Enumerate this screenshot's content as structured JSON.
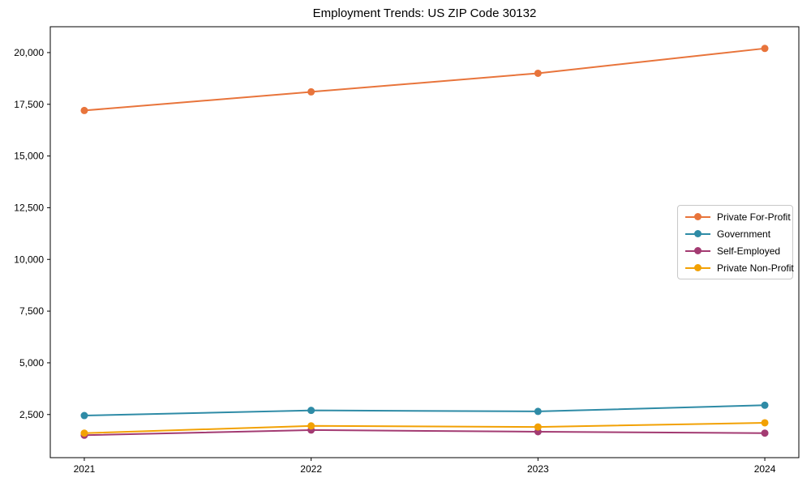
{
  "chart_data": {
    "type": "line",
    "title": "Employment Trends: US ZIP Code 30132",
    "xlabel": "",
    "ylabel": "",
    "x": [
      2021,
      2022,
      2023,
      2024
    ],
    "x_tick_labels": [
      "2021",
      "2022",
      "2023",
      "2024"
    ],
    "y_ticks": [
      2500,
      5000,
      7500,
      10000,
      12500,
      15000,
      17500,
      20000
    ],
    "y_tick_labels": [
      "2,500",
      "5,000",
      "7,500",
      "10,000",
      "12,500",
      "15,000",
      "17,500",
      "20,000"
    ],
    "xlim": [
      2020.85,
      2024.15
    ],
    "ylim": [
      415,
      21250
    ],
    "grid": false,
    "legend_position": "center-right",
    "series": [
      {
        "name": "Private For-Profit",
        "color": "#E8743B",
        "values": [
          17200,
          18100,
          19000,
          20200
        ]
      },
      {
        "name": "Government",
        "color": "#2E8BA6",
        "values": [
          2450,
          2700,
          2650,
          2950
        ]
      },
      {
        "name": "Self-Employed",
        "color": "#A33B72",
        "values": [
          1500,
          1750,
          1670,
          1600
        ]
      },
      {
        "name": "Private Non-Profit",
        "color": "#F2A104",
        "values": [
          1600,
          1950,
          1900,
          2100
        ]
      }
    ]
  }
}
